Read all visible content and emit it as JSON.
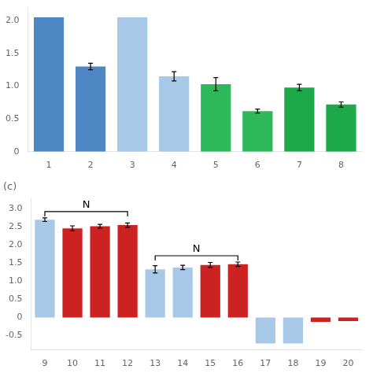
{
  "chart_data": [
    {
      "type": "bar",
      "categories": [
        "1",
        "2",
        "3",
        "4",
        "5",
        "6",
        "7",
        "8"
      ],
      "values": [
        2.05,
        1.3,
        2.05,
        1.15,
        1.03,
        0.62,
        0.98,
        0.72
      ],
      "errors": [
        0.0,
        0.05,
        0.0,
        0.07,
        0.1,
        0.03,
        0.05,
        0.04
      ],
      "colors": [
        "#4f87c5",
        "#4f87c5",
        "#a8c8e8",
        "#a8c8e8",
        "#2db85a",
        "#2db85a",
        "#1da84a",
        "#1da84a"
      ],
      "ylim": [
        0,
        2.2
      ],
      "yticks": [
        0,
        0.5,
        {
          "value": 1,
          "label": "1.0"
        },
        1.5,
        {
          "value": 2,
          "label": "2.0"
        }
      ],
      "grid": false
    },
    {
      "type": "bar",
      "title": "(c)",
      "categories": [
        "9",
        "10",
        "11",
        "12",
        "13",
        "14",
        "15",
        "16",
        "17",
        "18",
        "19",
        "20"
      ],
      "values": [
        2.7,
        2.46,
        2.52,
        2.55,
        1.33,
        1.38,
        1.45,
        1.47,
        -0.72,
        -0.72,
        -0.12,
        -0.1
      ],
      "errors": [
        0.05,
        0.07,
        0.05,
        0.06,
        0.1,
        0.06,
        0.07,
        0.06,
        0.0,
        0.0,
        0.0,
        0.0
      ],
      "colors": [
        "#a8c8e8",
        "#cc2222",
        "#cc2222",
        "#cc2222",
        "#a8c8e8",
        "#a8c8e8",
        "#cc2222",
        "#cc2222",
        "#a8c8e8",
        "#a8c8e8",
        "#cc2222",
        "#cc2222"
      ],
      "ylim": [
        -0.9,
        3.3
      ],
      "yticks": [
        -0.5,
        0,
        0.5,
        {
          "value": 1,
          "label": "1.0"
        },
        1.5,
        {
          "value": 2,
          "label": "2.0"
        },
        2.5,
        {
          "value": 3,
          "label": "3.0"
        }
      ],
      "annotations": [
        {
          "text": "N",
          "from": "9",
          "to": "12"
        },
        {
          "text": "N",
          "from": "13",
          "to": "16"
        }
      ],
      "grid": false
    }
  ]
}
